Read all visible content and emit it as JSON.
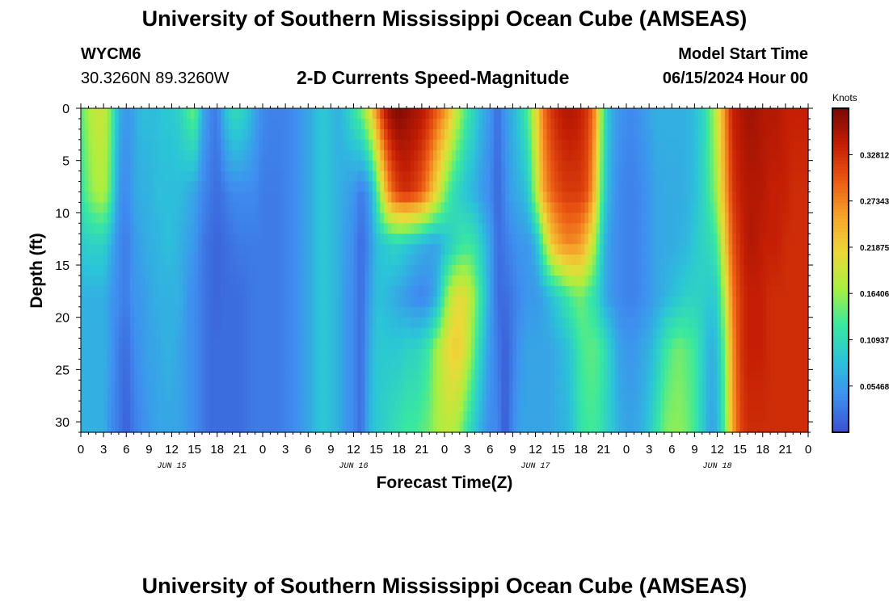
{
  "header": {
    "title": "University of Southern Mississippi Ocean Cube (AMSEAS)",
    "station_id": "WYCM6",
    "station_coords": "30.3260N  89.3260W",
    "model_start_label": "Model Start Time",
    "model_start_value": "06/15/2024 Hour 00",
    "repeated_title": "University of Southern Mississippi Ocean Cube (AMSEAS)"
  },
  "colors": {
    "scale": [
      "#3a4fd0",
      "#3f8ef0",
      "#2bc4d8",
      "#38e8a0",
      "#a8f040",
      "#ecd838",
      "#f5a52a",
      "#ec5a14",
      "#c41e04",
      "#7a0804"
    ]
  },
  "chart_data": {
    "type": "heatmap",
    "title": "2-D Currents Speed-Magnitude",
    "xlabel": "Forecast Time(Z)",
    "ylabel": "Depth (ft)",
    "colorbar_label": "Knots",
    "x_range_hours": [
      0,
      96
    ],
    "y_range_ft": [
      0,
      31
    ],
    "x_ticks": [
      "0",
      "3",
      "6",
      "9",
      "12",
      "15",
      "18",
      "21",
      "0",
      "3",
      "6",
      "9",
      "12",
      "15",
      "18",
      "21",
      "0",
      "3",
      "6",
      "9",
      "12",
      "15",
      "18",
      "21",
      "0",
      "3",
      "6",
      "9",
      "12",
      "15",
      "18",
      "21",
      "0"
    ],
    "y_ticks": [
      0,
      5,
      10,
      15,
      20,
      25,
      30
    ],
    "date_labels": [
      {
        "label": "JUN 15",
        "hour": 12
      },
      {
        "label": "JUN 16",
        "hour": 36
      },
      {
        "label": "JUN 17",
        "hour": 60
      },
      {
        "label": "JUN 18",
        "hour": 84
      }
    ],
    "colorbar_ticks": [
      "0.05468",
      "0.10937",
      "0.16406",
      "0.21875",
      "0.27343",
      "0.32812"
    ],
    "colorbar_values": [
      0.05468,
      0.10937,
      0.16406,
      0.21875,
      0.27343,
      0.32812
    ],
    "value_range": [
      0.0,
      0.383
    ],
    "column_profiles": {
      "depths_ft": [
        0,
        8,
        13,
        18,
        23,
        31
      ],
      "hours": [
        0,
        1,
        2,
        3,
        4,
        5,
        6,
        7,
        8,
        9,
        10,
        11,
        12,
        13,
        14,
        15,
        16,
        17,
        18,
        19,
        20,
        21,
        22,
        23,
        24,
        25,
        26,
        27,
        28,
        29,
        30,
        31,
        32,
        33,
        34,
        35,
        36,
        37,
        38,
        39,
        40,
        41,
        42,
        43,
        44,
        45,
        46,
        47,
        48,
        49,
        50,
        51,
        52,
        53,
        54,
        55,
        56,
        57,
        58,
        59,
        60,
        61,
        62,
        63,
        64,
        65,
        66,
        67,
        68,
        69,
        70,
        71,
        72,
        73,
        74,
        75,
        76,
        77,
        78,
        79,
        80,
        81,
        82,
        83,
        84,
        85,
        86,
        87,
        88,
        89,
        90,
        91,
        92,
        93,
        94,
        95,
        96
      ],
      "values": [
        [
          0.14,
          0.12,
          0.09,
          0.07,
          0.07,
          0.07
        ],
        [
          0.17,
          0.15,
          0.1,
          0.07,
          0.07,
          0.07
        ],
        [
          0.19,
          0.17,
          0.1,
          0.07,
          0.07,
          0.07
        ],
        [
          0.19,
          0.18,
          0.1,
          0.07,
          0.07,
          0.07
        ],
        [
          0.15,
          0.13,
          0.07,
          0.05,
          0.05,
          0.04
        ],
        [
          0.07,
          0.05,
          0.04,
          0.04,
          0.03,
          0.03
        ],
        [
          0.05,
          0.04,
          0.03,
          0.03,
          0.02,
          0.01
        ],
        [
          0.06,
          0.06,
          0.05,
          0.05,
          0.04,
          0.03
        ],
        [
          0.08,
          0.07,
          0.06,
          0.05,
          0.05,
          0.04
        ],
        [
          0.08,
          0.07,
          0.07,
          0.06,
          0.06,
          0.05
        ],
        [
          0.08,
          0.08,
          0.07,
          0.07,
          0.06,
          0.06
        ],
        [
          0.09,
          0.08,
          0.08,
          0.07,
          0.07,
          0.06
        ],
        [
          0.09,
          0.08,
          0.08,
          0.07,
          0.07,
          0.06
        ],
        [
          0.1,
          0.08,
          0.07,
          0.07,
          0.06,
          0.06
        ],
        [
          0.13,
          0.07,
          0.06,
          0.05,
          0.05,
          0.05
        ],
        [
          0.15,
          0.06,
          0.05,
          0.04,
          0.04,
          0.04
        ],
        [
          0.07,
          0.04,
          0.03,
          0.03,
          0.03,
          0.03
        ],
        [
          0.04,
          0.03,
          0.02,
          0.02,
          0.02,
          0.02
        ],
        [
          0.03,
          0.02,
          0.015,
          0.015,
          0.02,
          0.02
        ],
        [
          0.08,
          0.03,
          0.02,
          0.02,
          0.02,
          0.02
        ],
        [
          0.11,
          0.04,
          0.025,
          0.02,
          0.02,
          0.02
        ],
        [
          0.11,
          0.04,
          0.03,
          0.02,
          0.02,
          0.02
        ],
        [
          0.09,
          0.04,
          0.03,
          0.025,
          0.025,
          0.025
        ],
        [
          0.06,
          0.04,
          0.03,
          0.03,
          0.03,
          0.03
        ],
        [
          0.04,
          0.03,
          0.03,
          0.03,
          0.03,
          0.03
        ],
        [
          0.035,
          0.03,
          0.03,
          0.03,
          0.03,
          0.03
        ],
        [
          0.035,
          0.03,
          0.03,
          0.03,
          0.03,
          0.03
        ],
        [
          0.035,
          0.035,
          0.035,
          0.035,
          0.035,
          0.035
        ],
        [
          0.04,
          0.04,
          0.04,
          0.04,
          0.04,
          0.04
        ],
        [
          0.05,
          0.05,
          0.05,
          0.05,
          0.05,
          0.05
        ],
        [
          0.06,
          0.06,
          0.06,
          0.06,
          0.06,
          0.06
        ],
        [
          0.08,
          0.08,
          0.08,
          0.08,
          0.08,
          0.08
        ],
        [
          0.09,
          0.09,
          0.09,
          0.09,
          0.09,
          0.09
        ],
        [
          0.08,
          0.08,
          0.08,
          0.08,
          0.08,
          0.08
        ],
        [
          0.07,
          0.07,
          0.07,
          0.07,
          0.07,
          0.07
        ],
        [
          0.09,
          0.06,
          0.055,
          0.05,
          0.05,
          0.05
        ],
        [
          0.12,
          0.05,
          0.04,
          0.04,
          0.04,
          0.04
        ],
        [
          0.15,
          0.03,
          0.02,
          0.02,
          0.02,
          0.02
        ],
        [
          0.2,
          0.05,
          0.04,
          0.05,
          0.06,
          0.07
        ],
        [
          0.27,
          0.12,
          0.08,
          0.08,
          0.09,
          0.09
        ],
        [
          0.34,
          0.22,
          0.09,
          0.08,
          0.09,
          0.1
        ],
        [
          0.37,
          0.29,
          0.1,
          0.07,
          0.09,
          0.11
        ],
        [
          0.38,
          0.32,
          0.1,
          0.06,
          0.09,
          0.12
        ],
        [
          0.37,
          0.33,
          0.09,
          0.05,
          0.1,
          0.13
        ],
        [
          0.36,
          0.32,
          0.08,
          0.04,
          0.1,
          0.13
        ],
        [
          0.35,
          0.3,
          0.07,
          0.035,
          0.11,
          0.14
        ],
        [
          0.33,
          0.26,
          0.06,
          0.045,
          0.13,
          0.15
        ],
        [
          0.3,
          0.21,
          0.06,
          0.07,
          0.17,
          0.17
        ],
        [
          0.27,
          0.16,
          0.08,
          0.14,
          0.2,
          0.18
        ],
        [
          0.22,
          0.12,
          0.1,
          0.19,
          0.22,
          0.18
        ],
        [
          0.17,
          0.1,
          0.12,
          0.21,
          0.22,
          0.16
        ],
        [
          0.13,
          0.08,
          0.13,
          0.2,
          0.19,
          0.12
        ],
        [
          0.1,
          0.07,
          0.12,
          0.16,
          0.14,
          0.09
        ],
        [
          0.07,
          0.05,
          0.09,
          0.11,
          0.09,
          0.06
        ],
        [
          0.05,
          0.04,
          0.06,
          0.06,
          0.05,
          0.04
        ],
        [
          0.02,
          0.015,
          0.02,
          0.02,
          0.03,
          0.04
        ],
        [
          0.05,
          0.04,
          0.03,
          0.02,
          0.01,
          0.005
        ],
        [
          0.07,
          0.06,
          0.04,
          0.03,
          0.03,
          0.04
        ],
        [
          0.1,
          0.07,
          0.05,
          0.04,
          0.05,
          0.06
        ],
        [
          0.14,
          0.09,
          0.05,
          0.05,
          0.06,
          0.06
        ],
        [
          0.2,
          0.17,
          0.07,
          0.05,
          0.06,
          0.06
        ],
        [
          0.28,
          0.25,
          0.14,
          0.06,
          0.06,
          0.06
        ],
        [
          0.32,
          0.29,
          0.22,
          0.08,
          0.06,
          0.06
        ],
        [
          0.34,
          0.31,
          0.25,
          0.1,
          0.07,
          0.07
        ],
        [
          0.35,
          0.32,
          0.27,
          0.12,
          0.08,
          0.07
        ],
        [
          0.35,
          0.32,
          0.27,
          0.14,
          0.1,
          0.09
        ],
        [
          0.34,
          0.32,
          0.26,
          0.15,
          0.13,
          0.12
        ],
        [
          0.32,
          0.3,
          0.22,
          0.13,
          0.14,
          0.13
        ],
        [
          0.26,
          0.22,
          0.16,
          0.11,
          0.14,
          0.13
        ],
        [
          0.13,
          0.11,
          0.08,
          0.07,
          0.12,
          0.11
        ],
        [
          0.07,
          0.06,
          0.05,
          0.05,
          0.09,
          0.09
        ],
        [
          0.05,
          0.04,
          0.04,
          0.04,
          0.06,
          0.07
        ],
        [
          0.04,
          0.035,
          0.035,
          0.035,
          0.05,
          0.06
        ],
        [
          0.04,
          0.035,
          0.035,
          0.035,
          0.05,
          0.06
        ],
        [
          0.05,
          0.04,
          0.04,
          0.04,
          0.06,
          0.07
        ],
        [
          0.06,
          0.05,
          0.05,
          0.05,
          0.07,
          0.09
        ],
        [
          0.07,
          0.06,
          0.06,
          0.06,
          0.09,
          0.12
        ],
        [
          0.07,
          0.065,
          0.065,
          0.07,
          0.12,
          0.15
        ],
        [
          0.07,
          0.065,
          0.065,
          0.08,
          0.14,
          0.16
        ],
        [
          0.07,
          0.065,
          0.07,
          0.09,
          0.15,
          0.16
        ],
        [
          0.07,
          0.07,
          0.075,
          0.1,
          0.14,
          0.15
        ],
        [
          0.08,
          0.08,
          0.09,
          0.1,
          0.13,
          0.13
        ],
        [
          0.1,
          0.1,
          0.1,
          0.1,
          0.1,
          0.1
        ],
        [
          0.14,
          0.13,
          0.11,
          0.09,
          0.07,
          0.06
        ],
        [
          0.19,
          0.17,
          0.13,
          0.1,
          0.08,
          0.07
        ],
        [
          0.27,
          0.25,
          0.22,
          0.18,
          0.15,
          0.14
        ],
        [
          0.34,
          0.32,
          0.3,
          0.28,
          0.26,
          0.25
        ],
        [
          0.35,
          0.34,
          0.33,
          0.32,
          0.32,
          0.31
        ],
        [
          0.36,
          0.35,
          0.35,
          0.34,
          0.34,
          0.33
        ],
        [
          0.36,
          0.35,
          0.35,
          0.34,
          0.34,
          0.33
        ],
        [
          0.35,
          0.35,
          0.34,
          0.34,
          0.34,
          0.33
        ],
        [
          0.35,
          0.34,
          0.34,
          0.33,
          0.33,
          0.33
        ],
        [
          0.35,
          0.34,
          0.34,
          0.33,
          0.33,
          0.33
        ],
        [
          0.34,
          0.34,
          0.33,
          0.33,
          0.33,
          0.33
        ],
        [
          0.34,
          0.33,
          0.33,
          0.33,
          0.33,
          0.33
        ],
        [
          0.34,
          0.33,
          0.33,
          0.33,
          0.33,
          0.33
        ],
        [
          0.34,
          0.33,
          0.33,
          0.33,
          0.33,
          0.33
        ]
      ]
    }
  }
}
